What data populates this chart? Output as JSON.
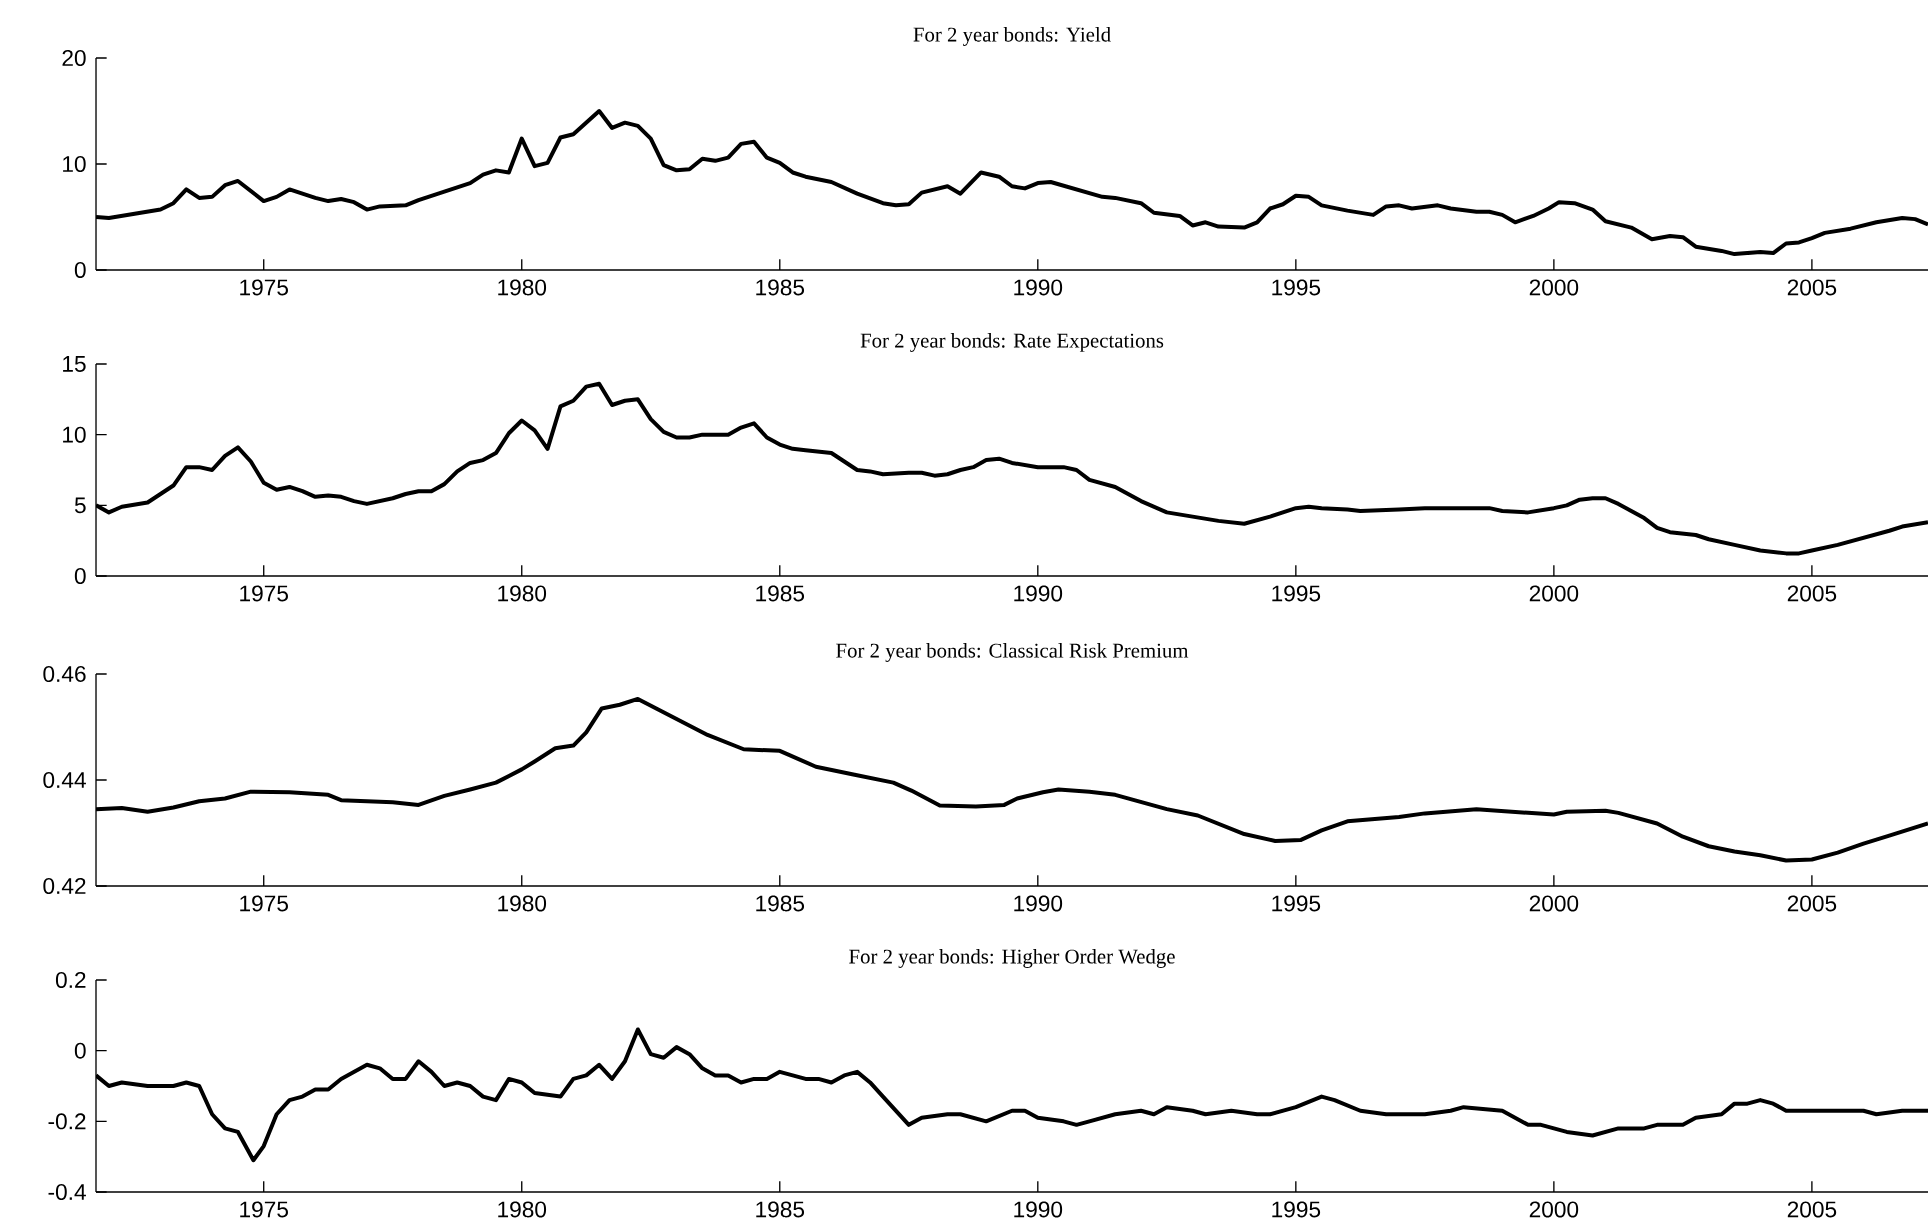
{
  "chart_data": [
    {
      "type": "line",
      "title": "For 2 year bonds: Yield",
      "color": "#000000",
      "xlim": [
        1971.75,
        2007.25
      ],
      "xticks": [
        1975,
        1980,
        1985,
        1990,
        1995,
        2000,
        2005
      ],
      "ylim": [
        0,
        20
      ],
      "yticks": [
        0,
        10,
        20
      ],
      "x": [
        1971.75,
        1972.0,
        1972.5,
        1973.0,
        1973.25,
        1973.5,
        1973.75,
        1974.0,
        1974.25,
        1974.5,
        1975.0,
        1975.25,
        1975.5,
        1976.0,
        1976.25,
        1976.5,
        1976.75,
        1977.0,
        1977.25,
        1977.75,
        1978.0,
        1978.5,
        1979.0,
        1979.25,
        1979.5,
        1979.75,
        1980.0,
        1980.25,
        1980.5,
        1980.75,
        1981.0,
        1981.25,
        1981.5,
        1981.75,
        1982.0,
        1982.25,
        1982.5,
        1982.75,
        1983.0,
        1983.25,
        1983.5,
        1983.75,
        1984.0,
        1984.25,
        1984.5,
        1984.75,
        1985.0,
        1985.25,
        1985.5,
        1986.0,
        1986.5,
        1987.0,
        1987.25,
        1987.5,
        1987.75,
        1988.0,
        1988.25,
        1988.5,
        1988.9,
        1989.25,
        1989.5,
        1989.75,
        1990.0,
        1990.25,
        1990.75,
        1991.25,
        1991.5,
        1992.0,
        1992.25,
        1992.75,
        1993.0,
        1993.25,
        1993.5,
        1994.0,
        1994.25,
        1994.5,
        1994.75,
        1995.0,
        1995.25,
        1995.5,
        1996.0,
        1996.5,
        1996.75,
        1997.0,
        1997.25,
        1997.75,
        1998.0,
        1998.5,
        1998.75,
        1999.0,
        1999.25,
        1999.6,
        1999.9,
        2000.1,
        2000.4,
        2000.75,
        2001.0,
        2001.5,
        2001.9,
        2002.25,
        2002.5,
        2002.75,
        2003.25,
        2003.5,
        2004.0,
        2004.25,
        2004.5,
        2004.75,
        2005.0,
        2005.25,
        2005.75,
        2006.25,
        2006.75,
        2007.0,
        2007.25
      ],
      "values": [
        5.0,
        4.9,
        5.3,
        5.7,
        6.3,
        7.6,
        6.8,
        6.9,
        8.0,
        8.4,
        6.5,
        6.9,
        7.6,
        6.8,
        6.5,
        6.7,
        6.4,
        5.7,
        6.0,
        6.1,
        6.6,
        7.4,
        8.2,
        9.0,
        9.4,
        9.2,
        12.4,
        9.8,
        10.1,
        12.5,
        12.8,
        13.9,
        15.0,
        13.4,
        13.9,
        13.6,
        12.4,
        9.9,
        9.4,
        9.5,
        10.5,
        10.3,
        10.6,
        11.9,
        12.1,
        10.6,
        10.1,
        9.2,
        8.8,
        8.3,
        7.2,
        6.3,
        6.1,
        6.2,
        7.3,
        7.6,
        7.9,
        7.2,
        9.2,
        8.8,
        7.9,
        7.7,
        8.2,
        8.3,
        7.6,
        6.9,
        6.8,
        6.3,
        5.4,
        5.1,
        4.2,
        4.5,
        4.1,
        4.0,
        4.5,
        5.8,
        6.2,
        7.0,
        6.9,
        6.1,
        5.6,
        5.2,
        6.0,
        6.1,
        5.8,
        6.1,
        5.8,
        5.5,
        5.5,
        5.2,
        4.5,
        5.1,
        5.8,
        6.4,
        6.3,
        5.7,
        4.6,
        4.0,
        2.9,
        3.2,
        3.1,
        2.2,
        1.8,
        1.5,
        1.7,
        1.6,
        2.5,
        2.6,
        3.0,
        3.5,
        3.9,
        4.5,
        4.9,
        4.8,
        4.3
      ]
    },
    {
      "type": "line",
      "title": "For 2 year bonds: Rate Expectations",
      "color": "#000000",
      "xlim": [
        1971.75,
        2007.25
      ],
      "xticks": [
        1975,
        1980,
        1985,
        1990,
        1995,
        2000,
        2005
      ],
      "ylim": [
        0,
        15
      ],
      "yticks": [
        0,
        5,
        10,
        15
      ],
      "x": [
        1971.75,
        1972.0,
        1972.25,
        1972.75,
        1973.0,
        1973.25,
        1973.5,
        1973.75,
        1974.0,
        1974.25,
        1974.5,
        1974.75,
        1975.0,
        1975.25,
        1975.5,
        1975.75,
        1976.0,
        1976.25,
        1976.5,
        1976.75,
        1977.0,
        1977.5,
        1977.75,
        1978.0,
        1978.25,
        1978.5,
        1978.75,
        1979.0,
        1979.25,
        1979.5,
        1979.75,
        1980.0,
        1980.25,
        1980.5,
        1980.75,
        1981.0,
        1981.25,
        1981.5,
        1981.75,
        1982.0,
        1982.25,
        1982.5,
        1982.75,
        1983.0,
        1983.25,
        1983.5,
        1984.0,
        1984.25,
        1984.5,
        1984.75,
        1985.0,
        1985.25,
        1985.5,
        1986.0,
        1986.25,
        1986.5,
        1986.75,
        1987.0,
        1987.5,
        1987.75,
        1988.0,
        1988.25,
        1988.5,
        1988.75,
        1989.0,
        1989.25,
        1989.5,
        1990.0,
        1990.5,
        1990.75,
        1991.0,
        1991.5,
        1992.0,
        1992.25,
        1992.5,
        1993.0,
        1993.5,
        1993.75,
        1994.0,
        1994.5,
        1995.0,
        1995.25,
        1995.5,
        1996.0,
        1996.25,
        1997.0,
        1997.5,
        1998.0,
        1998.75,
        1999.0,
        1999.5,
        2000.0,
        2000.25,
        2000.5,
        2000.75,
        2001.0,
        2001.25,
        2001.5,
        2001.75,
        2002.0,
        2002.25,
        2002.75,
        2003.0,
        2003.5,
        2004.0,
        2004.5,
        2004.75,
        2005.0,
        2005.5,
        2006.0,
        2006.5,
        2006.75,
        2007.25
      ],
      "values": [
        5.0,
        4.5,
        4.9,
        5.2,
        5.8,
        6.4,
        7.7,
        7.7,
        7.5,
        8.5,
        9.1,
        8.1,
        6.6,
        6.1,
        6.3,
        6.0,
        5.6,
        5.7,
        5.6,
        5.3,
        5.1,
        5.5,
        5.8,
        6.0,
        6.0,
        6.5,
        7.4,
        8.0,
        8.2,
        8.7,
        10.1,
        11.0,
        10.3,
        9.0,
        12.0,
        12.4,
        13.4,
        13.6,
        12.1,
        12.4,
        12.5,
        11.1,
        10.2,
        9.8,
        9.8,
        10.0,
        10.0,
        10.5,
        10.8,
        9.8,
        9.3,
        9.0,
        8.9,
        8.7,
        8.1,
        7.5,
        7.4,
        7.2,
        7.3,
        7.3,
        7.1,
        7.2,
        7.5,
        7.7,
        8.2,
        8.3,
        8.0,
        7.7,
        7.7,
        7.5,
        6.8,
        6.3,
        5.3,
        4.9,
        4.5,
        4.2,
        3.9,
        3.8,
        3.7,
        4.2,
        4.8,
        4.9,
        4.8,
        4.7,
        4.6,
        4.7,
        4.8,
        4.8,
        4.8,
        4.6,
        4.5,
        4.8,
        5.0,
        5.4,
        5.5,
        5.5,
        5.1,
        4.6,
        4.1,
        3.4,
        3.1,
        2.9,
        2.6,
        2.2,
        1.8,
        1.6,
        1.6,
        1.8,
        2.2,
        2.7,
        3.2,
        3.5,
        3.8
      ]
    },
    {
      "type": "line",
      "title": "For 2 year bonds: Classical Risk Premium",
      "color": "#000000",
      "xlim": [
        1971.75,
        2007.25
      ],
      "xticks": [
        1975,
        1980,
        1985,
        1990,
        1995,
        2000,
        2005
      ],
      "ylim": [
        0.42,
        0.46
      ],
      "yticks": [
        0.42,
        0.44,
        0.46
      ],
      "x": [
        1971.75,
        1972.25,
        1972.75,
        1973.25,
        1973.75,
        1974.25,
        1974.75,
        1975.5,
        1976.25,
        1976.5,
        1977.5,
        1978.0,
        1978.5,
        1979.0,
        1979.5,
        1980.0,
        1980.25,
        1980.65,
        1981.0,
        1981.25,
        1981.55,
        1981.9,
        1982.25,
        1983.6,
        1984.3,
        1985.0,
        1985.7,
        1986.45,
        1987.2,
        1987.55,
        1988.1,
        1988.8,
        1989.35,
        1989.6,
        1990.1,
        1990.4,
        1991.0,
        1991.5,
        1992.5,
        1993.1,
        1994.0,
        1994.6,
        1995.1,
        1995.5,
        1996.0,
        1997.0,
        1997.5,
        1998.5,
        1999.5,
        2000.0,
        2000.25,
        2001.0,
        2001.25,
        2002.0,
        2002.5,
        2003.0,
        2003.5,
        2004.0,
        2004.5,
        2005.0,
        2005.5,
        2006.0,
        2006.5,
        2007.25
      ],
      "values": [
        0.4345,
        0.4347,
        0.434,
        0.4348,
        0.436,
        0.4365,
        0.4378,
        0.4377,
        0.4372,
        0.4362,
        0.4358,
        0.4353,
        0.437,
        0.4382,
        0.4395,
        0.442,
        0.4435,
        0.446,
        0.4465,
        0.449,
        0.4535,
        0.4542,
        0.4553,
        0.4485,
        0.4458,
        0.4455,
        0.4425,
        0.441,
        0.4395,
        0.438,
        0.4352,
        0.435,
        0.4353,
        0.4365,
        0.4377,
        0.4382,
        0.4378,
        0.4372,
        0.4345,
        0.4333,
        0.4298,
        0.4285,
        0.4287,
        0.4305,
        0.4322,
        0.433,
        0.4337,
        0.4345,
        0.4338,
        0.4335,
        0.434,
        0.4342,
        0.4338,
        0.4318,
        0.4293,
        0.4275,
        0.4265,
        0.4258,
        0.4248,
        0.425,
        0.4263,
        0.428,
        0.4295,
        0.4318
      ]
    },
    {
      "type": "line",
      "title": "For 2 year bonds: Higher Order Wedge",
      "color": "#000000",
      "xlim": [
        1971.75,
        2007.25
      ],
      "xticks": [
        1975,
        1980,
        1985,
        1990,
        1995,
        2000,
        2005
      ],
      "ylim": [
        -0.4,
        0.2
      ],
      "yticks": [
        -0.4,
        -0.2,
        0,
        0.2
      ],
      "x": [
        1971.75,
        1972.0,
        1972.25,
        1972.75,
        1973.25,
        1973.5,
        1973.75,
        1974.0,
        1974.25,
        1974.5,
        1974.8,
        1975.0,
        1975.25,
        1975.5,
        1975.75,
        1976.0,
        1976.25,
        1976.5,
        1977.0,
        1977.25,
        1977.5,
        1977.75,
        1978.0,
        1978.25,
        1978.5,
        1978.75,
        1979.0,
        1979.25,
        1979.5,
        1979.75,
        1980.0,
        1980.25,
        1980.75,
        1981.0,
        1981.25,
        1981.5,
        1981.75,
        1982.0,
        1982.25,
        1982.5,
        1982.75,
        1983.0,
        1983.25,
        1983.5,
        1983.75,
        1984.0,
        1984.25,
        1984.5,
        1984.75,
        1985.0,
        1985.5,
        1985.75,
        1986.0,
        1986.25,
        1986.5,
        1986.75,
        1987.0,
        1987.25,
        1987.5,
        1987.75,
        1988.25,
        1988.5,
        1989.0,
        1989.5,
        1989.75,
        1990.0,
        1990.5,
        1990.75,
        1991.0,
        1991.5,
        1992.0,
        1992.25,
        1992.5,
        1993.0,
        1993.25,
        1993.75,
        1994.25,
        1994.5,
        1995.0,
        1995.5,
        1995.75,
        1996.25,
        1996.75,
        1997.5,
        1998.0,
        1998.25,
        1999.0,
        1999.5,
        1999.75,
        2000.25,
        2000.75,
        2001.25,
        2001.75,
        2002.0,
        2002.5,
        2002.75,
        2003.25,
        2003.5,
        2003.75,
        2004.0,
        2004.25,
        2004.5,
        2005.0,
        2005.5,
        2006.0,
        2006.25,
        2006.75,
        2007.25
      ],
      "values": [
        -0.07,
        -0.1,
        -0.09,
        -0.1,
        -0.1,
        -0.09,
        -0.1,
        -0.18,
        -0.22,
        -0.23,
        -0.31,
        -0.27,
        -0.18,
        -0.14,
        -0.13,
        -0.11,
        -0.11,
        -0.08,
        -0.04,
        -0.05,
        -0.08,
        -0.08,
        -0.03,
        -0.06,
        -0.1,
        -0.09,
        -0.1,
        -0.13,
        -0.14,
        -0.08,
        -0.09,
        -0.12,
        -0.13,
        -0.08,
        -0.07,
        -0.04,
        -0.08,
        -0.03,
        0.06,
        -0.01,
        -0.02,
        0.01,
        -0.01,
        -0.05,
        -0.07,
        -0.07,
        -0.09,
        -0.08,
        -0.08,
        -0.06,
        -0.08,
        -0.08,
        -0.09,
        -0.07,
        -0.06,
        -0.09,
        -0.13,
        -0.17,
        -0.21,
        -0.19,
        -0.18,
        -0.18,
        -0.2,
        -0.17,
        -0.17,
        -0.19,
        -0.2,
        -0.21,
        -0.2,
        -0.18,
        -0.17,
        -0.18,
        -0.16,
        -0.17,
        -0.18,
        -0.17,
        -0.18,
        -0.18,
        -0.16,
        -0.13,
        -0.14,
        -0.17,
        -0.18,
        -0.18,
        -0.17,
        -0.16,
        -0.17,
        -0.21,
        -0.21,
        -0.23,
        -0.24,
        -0.22,
        -0.22,
        -0.21,
        -0.21,
        -0.19,
        -0.18,
        -0.15,
        -0.15,
        -0.14,
        -0.15,
        -0.17,
        -0.17,
        -0.17,
        -0.17,
        -0.18,
        -0.17,
        -0.17
      ]
    }
  ]
}
